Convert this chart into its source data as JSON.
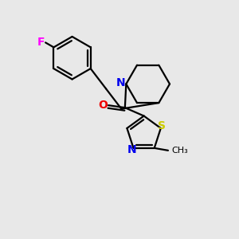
{
  "background_color": "#e8e8e8",
  "bond_color": "#000000",
  "N_color": "#0000ee",
  "O_color": "#ee0000",
  "S_color": "#cccc00",
  "F_color": "#ff00ff",
  "figsize": [
    3.0,
    3.0
  ],
  "dpi": 100,
  "xlim": [
    0,
    10
  ],
  "ylim": [
    0,
    10
  ]
}
